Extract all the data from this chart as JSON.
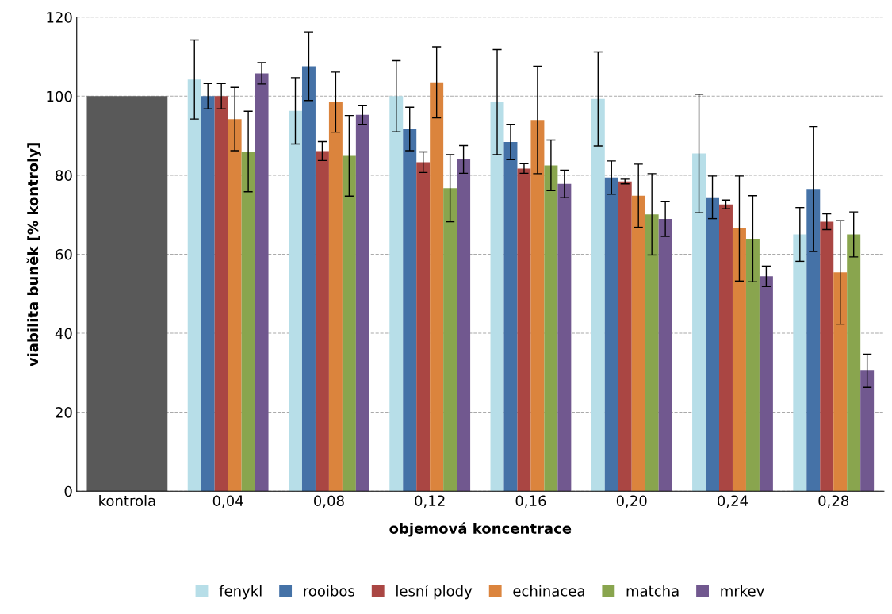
{
  "chart_data": {
    "type": "bar",
    "xlabel": "objemová koncentrace",
    "ylabel": "viabilita buněk [% kontroly]",
    "categories": [
      "kontrola",
      "0,04",
      "0,08",
      "0,12",
      "0,16",
      "0,20",
      "0,24",
      "0,28"
    ],
    "series": [
      {
        "color": "#595959",
        "values": [
          100,
          null,
          null,
          null,
          null,
          null,
          null,
          null
        ]
      },
      {
        "name": "fenykl",
        "color": "#b7dee8",
        "values": [
          null,
          104.2,
          96.3,
          100,
          98.5,
          99.3,
          85.5,
          65
        ],
        "errors": [
          null,
          10,
          8.4,
          9,
          13.3,
          11.9,
          15,
          6.8
        ]
      },
      {
        "name": "rooibos",
        "color": "#4572a7",
        "values": [
          null,
          100,
          107.6,
          91.7,
          88.4,
          79.4,
          74.4,
          76.5
        ],
        "errors": [
          null,
          3.2,
          8.7,
          5.5,
          4.5,
          4.2,
          5.4,
          15.8
        ]
      },
      {
        "name": "lesní plody",
        "color": "#aa4643",
        "values": [
          null,
          100,
          86.1,
          83.3,
          81.7,
          78.4,
          72.6,
          68.2
        ],
        "errors": [
          null,
          3.2,
          2.4,
          2.6,
          1.2,
          0.6,
          1.1,
          2
        ]
      },
      {
        "name": "echinacea",
        "color": "#db843d",
        "values": [
          null,
          94.2,
          98.5,
          103.5,
          94,
          74.8,
          66.5,
          55.4
        ],
        "errors": [
          null,
          8,
          7.6,
          9,
          13.6,
          8,
          13.3,
          13.1
        ]
      },
      {
        "name": "matcha",
        "color": "#89a54e",
        "values": [
          null,
          86,
          84.9,
          76.7,
          82.5,
          70.1,
          63.9,
          65
        ],
        "errors": [
          null,
          10.2,
          10.2,
          8.5,
          6.4,
          10.3,
          10.9,
          5.7
        ]
      },
      {
        "name": "mrkev",
        "color": "#71588f",
        "values": [
          null,
          105.8,
          95.3,
          84,
          77.8,
          68.9,
          54.4,
          30.5
        ],
        "errors": [
          null,
          2.7,
          2.4,
          3.5,
          3.5,
          4.4,
          2.6,
          4.2
        ]
      }
    ],
    "ylim": [
      0,
      120
    ],
    "yticks": [
      0,
      20,
      40,
      60,
      80,
      100,
      120
    ],
    "grid": "y",
    "legend": "bottom"
  }
}
